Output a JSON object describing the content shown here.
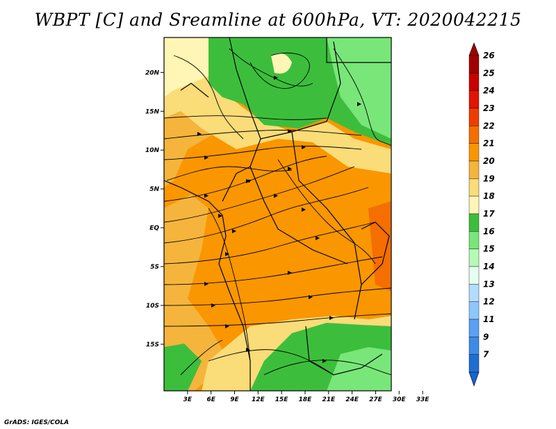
{
  "title": "WBPT [C] and Sreamline at 600hPa, VT: 2020042215",
  "footer": "GrADS: IGES/COLA",
  "map": {
    "lat_range": [
      -21,
      24.5
    ],
    "lon_range": [
      0,
      29
    ],
    "lat_ticks": [
      {
        "value": 20,
        "label": "20N"
      },
      {
        "value": 15,
        "label": "15N"
      },
      {
        "value": 10,
        "label": "10N"
      },
      {
        "value": 5,
        "label": "5N"
      },
      {
        "value": 0,
        "label": "EQ"
      },
      {
        "value": -5,
        "label": "5S"
      },
      {
        "value": -10,
        "label": "10S"
      },
      {
        "value": -15,
        "label": "15S"
      }
    ],
    "lon_ticks": [
      {
        "value": 3,
        "label": "3E"
      },
      {
        "value": 6,
        "label": "6E"
      },
      {
        "value": 9,
        "label": "9E"
      },
      {
        "value": 12,
        "label": "12E"
      },
      {
        "value": 15,
        "label": "15E"
      },
      {
        "value": 18,
        "label": "18E"
      },
      {
        "value": 21,
        "label": "21E"
      },
      {
        "value": 24,
        "label": "24E"
      },
      {
        "value": 27,
        "label": "27E"
      },
      {
        "value": 30,
        "label": "30E"
      },
      {
        "value": 33,
        "label": "33E"
      }
    ]
  },
  "colorbar": {
    "levels": [
      {
        "label": "26",
        "color": "#a00000"
      },
      {
        "label": "25",
        "color": "#c80000"
      },
      {
        "label": "24",
        "color": "#e11400"
      },
      {
        "label": "23",
        "color": "#f03c00"
      },
      {
        "label": "22",
        "color": "#f56e00"
      },
      {
        "label": "21",
        "color": "#fa9600"
      },
      {
        "label": "20",
        "color": "#f5b43c"
      },
      {
        "label": "19",
        "color": "#fadc78"
      },
      {
        "label": "18",
        "color": "#fff5b4"
      },
      {
        "label": "17",
        "color": "#3cbe3c"
      },
      {
        "label": "16",
        "color": "#78e678"
      },
      {
        "label": "15",
        "color": "#b4fab4"
      },
      {
        "label": "14",
        "color": "#e6fff0"
      },
      {
        "label": "13",
        "color": "#b4dcff"
      },
      {
        "label": "12",
        "color": "#8cc8ff"
      },
      {
        "label": "11",
        "color": "#5aa0f5"
      },
      {
        "label": "9",
        "color": "#3c8ce6"
      },
      {
        "label": "7",
        "color": "#1e6ed2"
      }
    ],
    "top_color": "#a00000",
    "bottom_color": "#1464d2"
  },
  "field_colors": {
    "orange": "#fa9600",
    "light_orange": "#f5b43c",
    "yellow": "#fadc78",
    "pale_yellow": "#fff5b4",
    "green": "#3cbe3c",
    "light_green": "#78e678"
  }
}
